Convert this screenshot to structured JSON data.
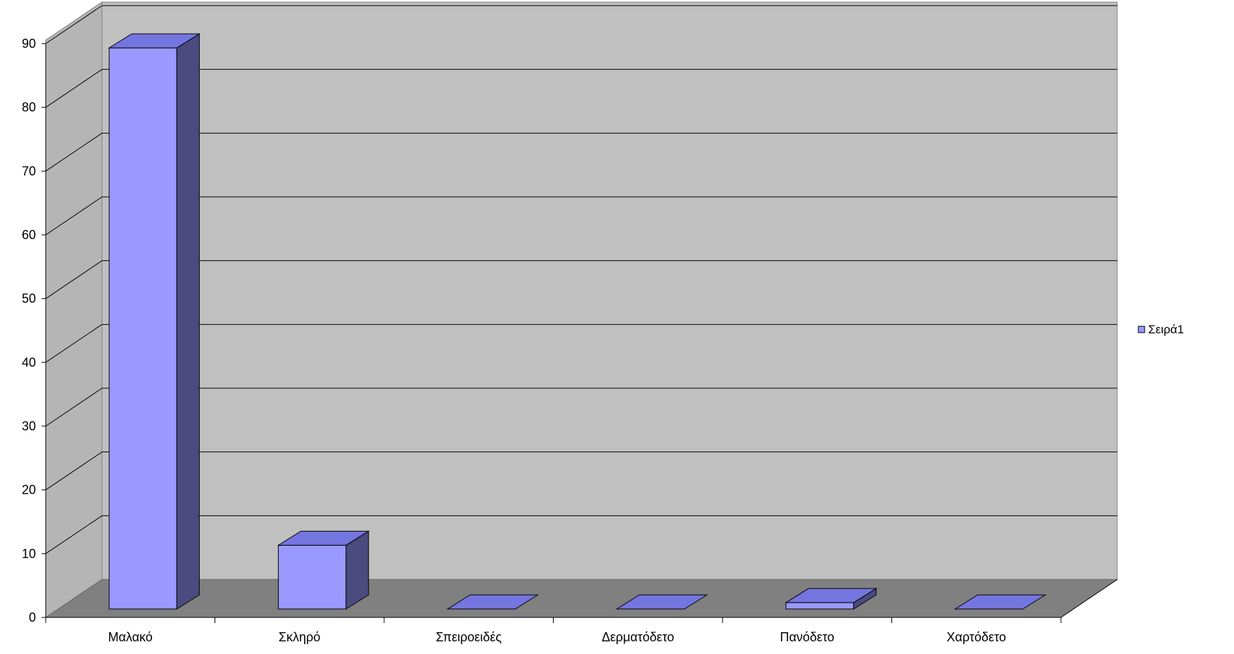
{
  "chart_data": {
    "type": "bar",
    "style": "3d-column",
    "categories": [
      "Μαλακό",
      "Σκληρό",
      "Σπειροειδές",
      "Δερματόδετο",
      "Πανόδετο",
      "Χαρτόδετο"
    ],
    "series": [
      {
        "name": "Σειρά1",
        "values": [
          88,
          10,
          0,
          0,
          1,
          0
        ]
      }
    ],
    "y_ticks": [
      "0",
      "10",
      "20",
      "30",
      "40",
      "50",
      "60",
      "70",
      "80",
      "90"
    ],
    "ylim": [
      0,
      90
    ],
    "grid": true,
    "legend": "right",
    "colors": {
      "bar_front": "#9999ff",
      "bar_top": "#7575e0",
      "bar_side": "#4b4b80",
      "back_wall": "#c0c0c0",
      "side_wall": "#b5b5b5",
      "floor": "#808080",
      "gridline": "#000000"
    }
  }
}
